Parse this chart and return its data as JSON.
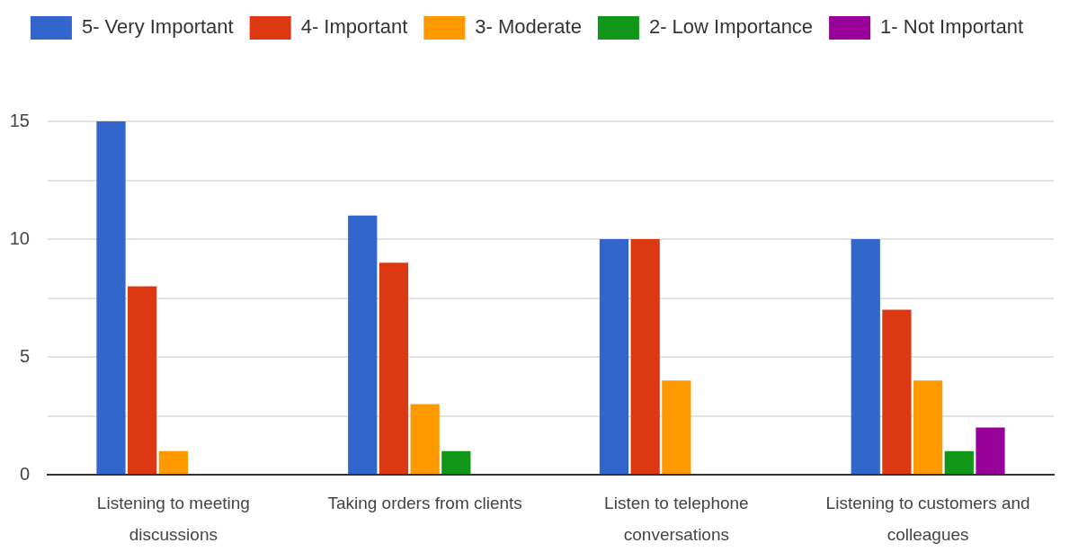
{
  "chart_data": {
    "type": "bar",
    "categories": [
      "Listening to meeting discussions",
      "Taking orders from clients",
      "Listen to telephone conversations",
      "Listening to customers and colleagues"
    ],
    "series": [
      {
        "name": "5- Very Important",
        "color": "#3366cc",
        "values": [
          15,
          11,
          10,
          10
        ]
      },
      {
        "name": "4- Important",
        "color": "#dc3912",
        "values": [
          8,
          9,
          10,
          7
        ]
      },
      {
        "name": "3- Moderate",
        "color": "#ff9900",
        "values": [
          1,
          3,
          4,
          4
        ]
      },
      {
        "name": "2- Low Importance",
        "color": "#109618",
        "values": [
          0,
          1,
          0,
          1
        ]
      },
      {
        "name": "1- Not Important",
        "color": "#990099",
        "values": [
          0,
          0,
          0,
          2
        ]
      }
    ],
    "ylim": [
      0,
      15
    ],
    "yticks": [
      0,
      {
        "value": 2.5,
        "label": null
      },
      5,
      {
        "value": 7.5,
        "label": null
      },
      10,
      {
        "value": 12.5,
        "label": null
      },
      15
    ],
    "grid": "y",
    "legend": "top"
  }
}
